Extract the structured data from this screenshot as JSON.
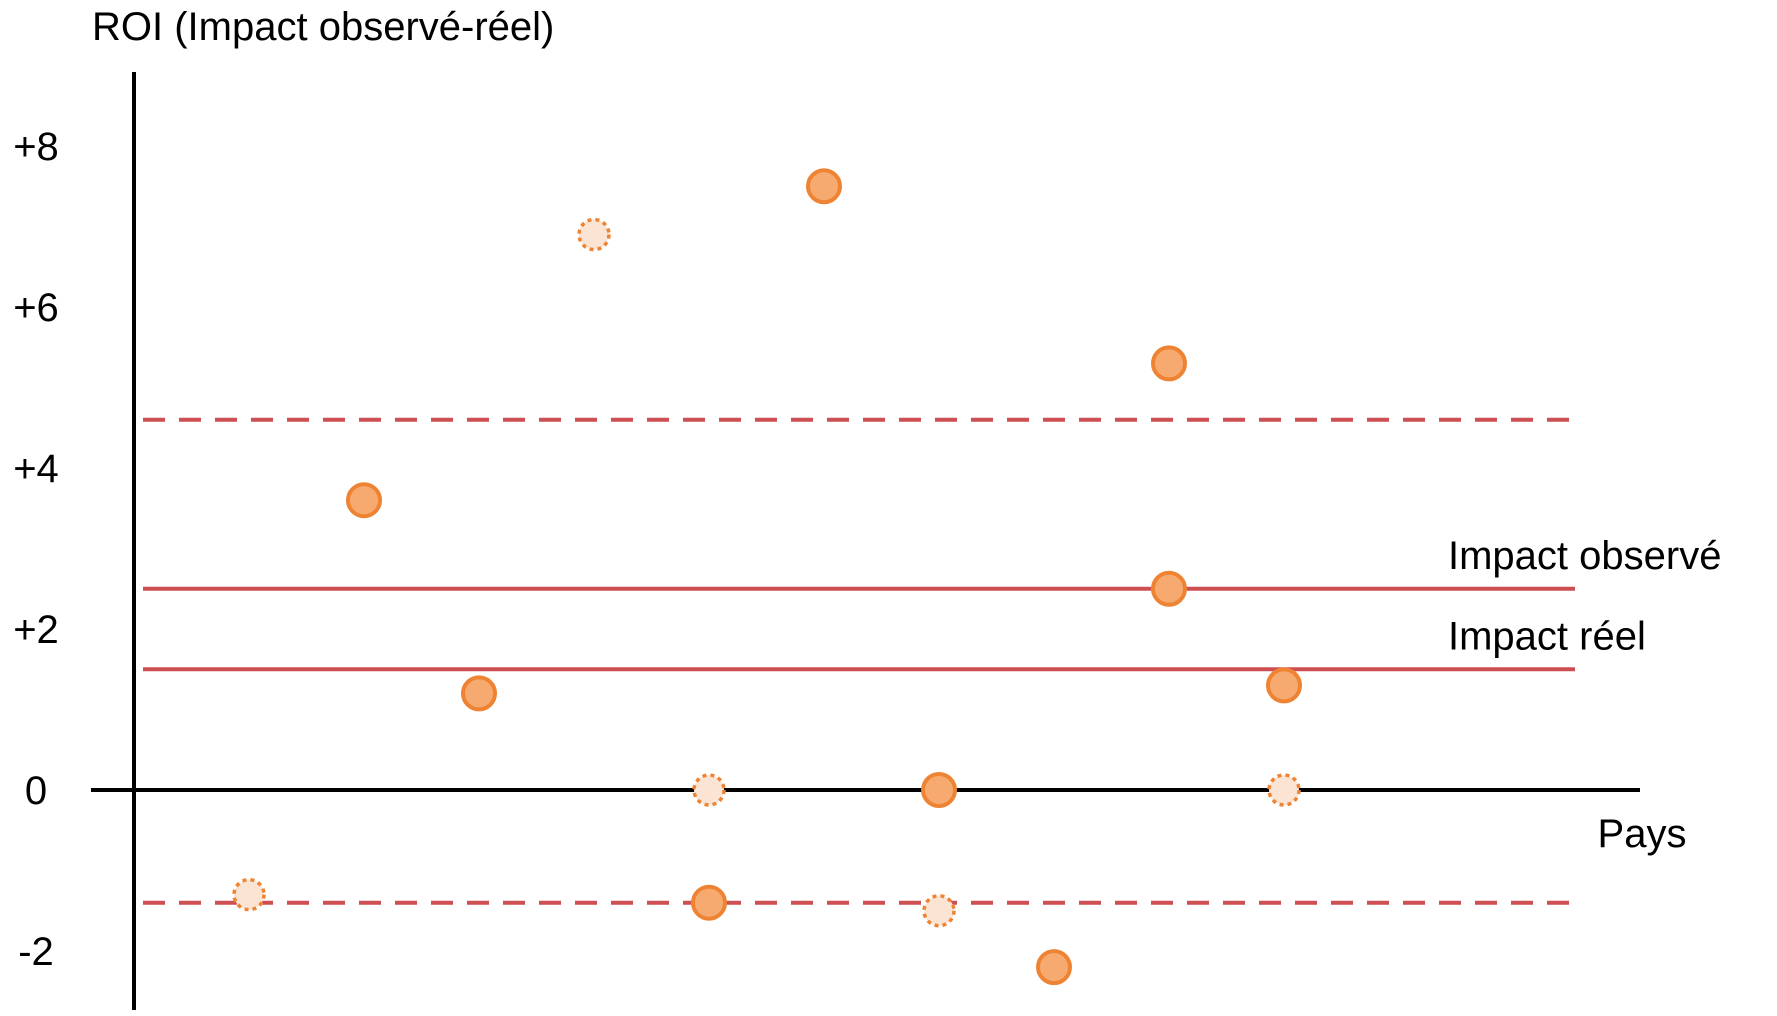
{
  "chart_data": {
    "type": "scatter",
    "title": "",
    "ylabel": "ROI (Impact observé-réel)",
    "xlabel": "Pays",
    "ylim": [
      -2.4,
      8.9
    ],
    "y_ticks": [
      {
        "value": 8,
        "label": "+8"
      },
      {
        "value": 6,
        "label": "+6"
      },
      {
        "value": 4,
        "label": "+4"
      },
      {
        "value": 2,
        "label": "+2"
      },
      {
        "value": 0,
        "label": "0"
      },
      {
        "value": -2,
        "label": "-2"
      }
    ],
    "grid": false,
    "reference_lines": [
      {
        "value": 2.5,
        "style": "solid",
        "color": "#cd4f52",
        "label": "Impact observé"
      },
      {
        "value": 1.5,
        "style": "solid",
        "color": "#cd4f52",
        "label": "Impact réel"
      },
      {
        "value": 4.6,
        "style": "dashed",
        "color": "#cd4f52",
        "label": ""
      },
      {
        "value": -1.4,
        "style": "dashed",
        "color": "#cd4f52",
        "label": ""
      }
    ],
    "series": [
      {
        "style": "solid",
        "color": "#f6aa70",
        "stroke": "#ee8433",
        "points": [
          {
            "x": 2,
            "y": 3.6
          },
          {
            "x": 3,
            "y": 1.2
          },
          {
            "x": 5,
            "y": -1.4
          },
          {
            "x": 6,
            "y": 7.5
          },
          {
            "x": 7,
            "y": 0
          },
          {
            "x": 8,
            "y": -2.2
          },
          {
            "x": 9,
            "y": 5.3
          },
          {
            "x": 9,
            "y": 2.5
          },
          {
            "x": 10,
            "y": 1.3
          }
        ]
      },
      {
        "style": "dotted",
        "color": "#fbe4d3",
        "stroke": "#ee8433",
        "points": [
          {
            "x": 1,
            "y": -1.3
          },
          {
            "x": 4,
            "y": 6.9
          },
          {
            "x": 5,
            "y": 0
          },
          {
            "x": 7,
            "y": -1.5
          },
          {
            "x": 10,
            "y": 0
          }
        ]
      }
    ]
  }
}
